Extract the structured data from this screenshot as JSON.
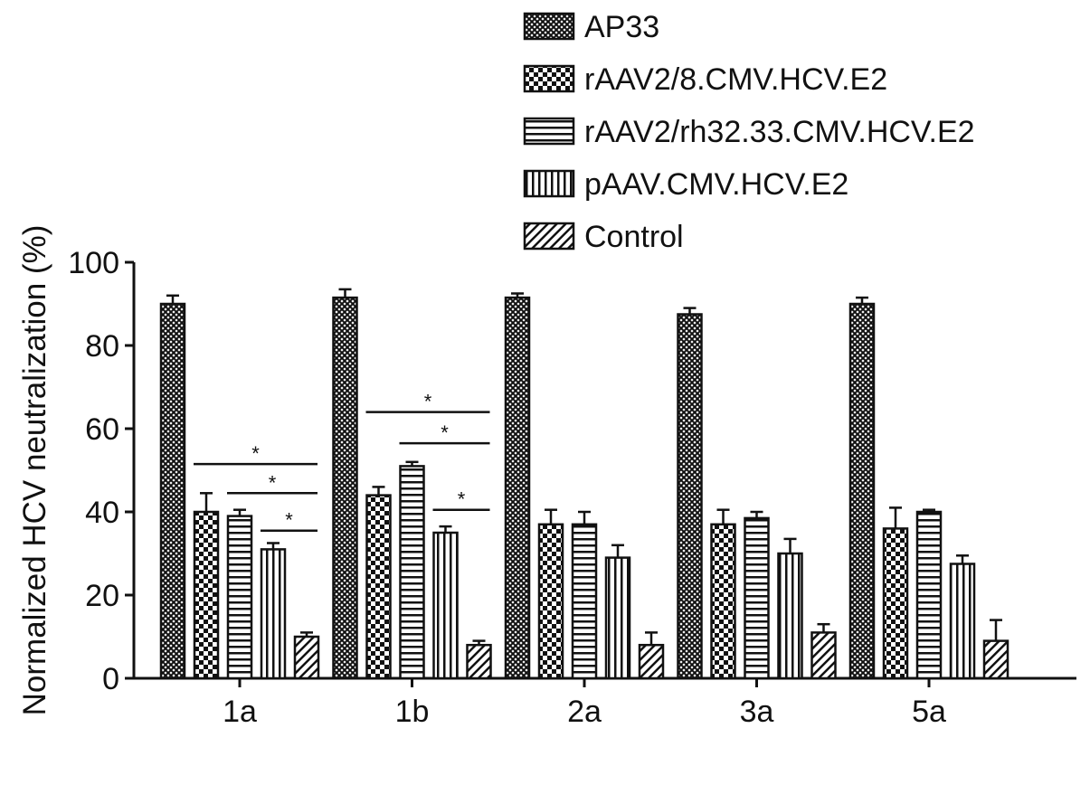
{
  "chart_data": {
    "type": "bar",
    "ylabel": "Normalized HCV neutralization (%)",
    "xlabel": "",
    "ylim": [
      0,
      100
    ],
    "yticks": [
      0,
      20,
      40,
      60,
      80,
      100
    ],
    "categories": [
      "1a",
      "1b",
      "2a",
      "3a",
      "5a"
    ],
    "grid": false,
    "legend_position": "top-right",
    "series": [
      {
        "name": "AP33",
        "pattern": "crosshatch",
        "values": [
          90,
          91.5,
          91.5,
          87.5,
          90
        ],
        "errors": [
          2,
          2,
          1,
          1.5,
          1.5
        ]
      },
      {
        "name": "rAAV2/8.CMV.HCV.E2",
        "pattern": "checker",
        "values": [
          40,
          44,
          37,
          37,
          36
        ],
        "errors": [
          4.5,
          2,
          3.5,
          3.5,
          5
        ]
      },
      {
        "name": "rAAV2/rh32.33.CMV.HCV.E2",
        "pattern": "horizontal",
        "values": [
          39,
          51,
          37,
          38.5,
          40
        ],
        "errors": [
          1.5,
          1,
          3,
          1.5,
          0.5
        ]
      },
      {
        "name": "pAAV.CMV.HCV.E2",
        "pattern": "vertical",
        "values": [
          31,
          35,
          29,
          30,
          27.5
        ],
        "errors": [
          1.5,
          1.5,
          3,
          3.5,
          2
        ]
      },
      {
        "name": "Control",
        "pattern": "diagonal",
        "values": [
          10,
          8,
          8,
          11,
          9
        ],
        "errors": [
          1,
          1,
          3,
          2,
          5
        ]
      }
    ],
    "annotations": [
      {
        "category": 0,
        "from_series": 1,
        "to_series": 4,
        "y": 51.5,
        "label": "*"
      },
      {
        "category": 0,
        "from_series": 2,
        "to_series": 4,
        "y": 44.5,
        "label": "*"
      },
      {
        "category": 0,
        "from_series": 3,
        "to_series": 4,
        "y": 35.5,
        "label": "*"
      },
      {
        "category": 1,
        "from_series": 1,
        "to_series": 4,
        "y": 64,
        "label": "*"
      },
      {
        "category": 1,
        "from_series": 2,
        "to_series": 4,
        "y": 56.5,
        "label": "*"
      },
      {
        "category": 1,
        "from_series": 3,
        "to_series": 4,
        "y": 40.5,
        "label": "*"
      }
    ]
  }
}
